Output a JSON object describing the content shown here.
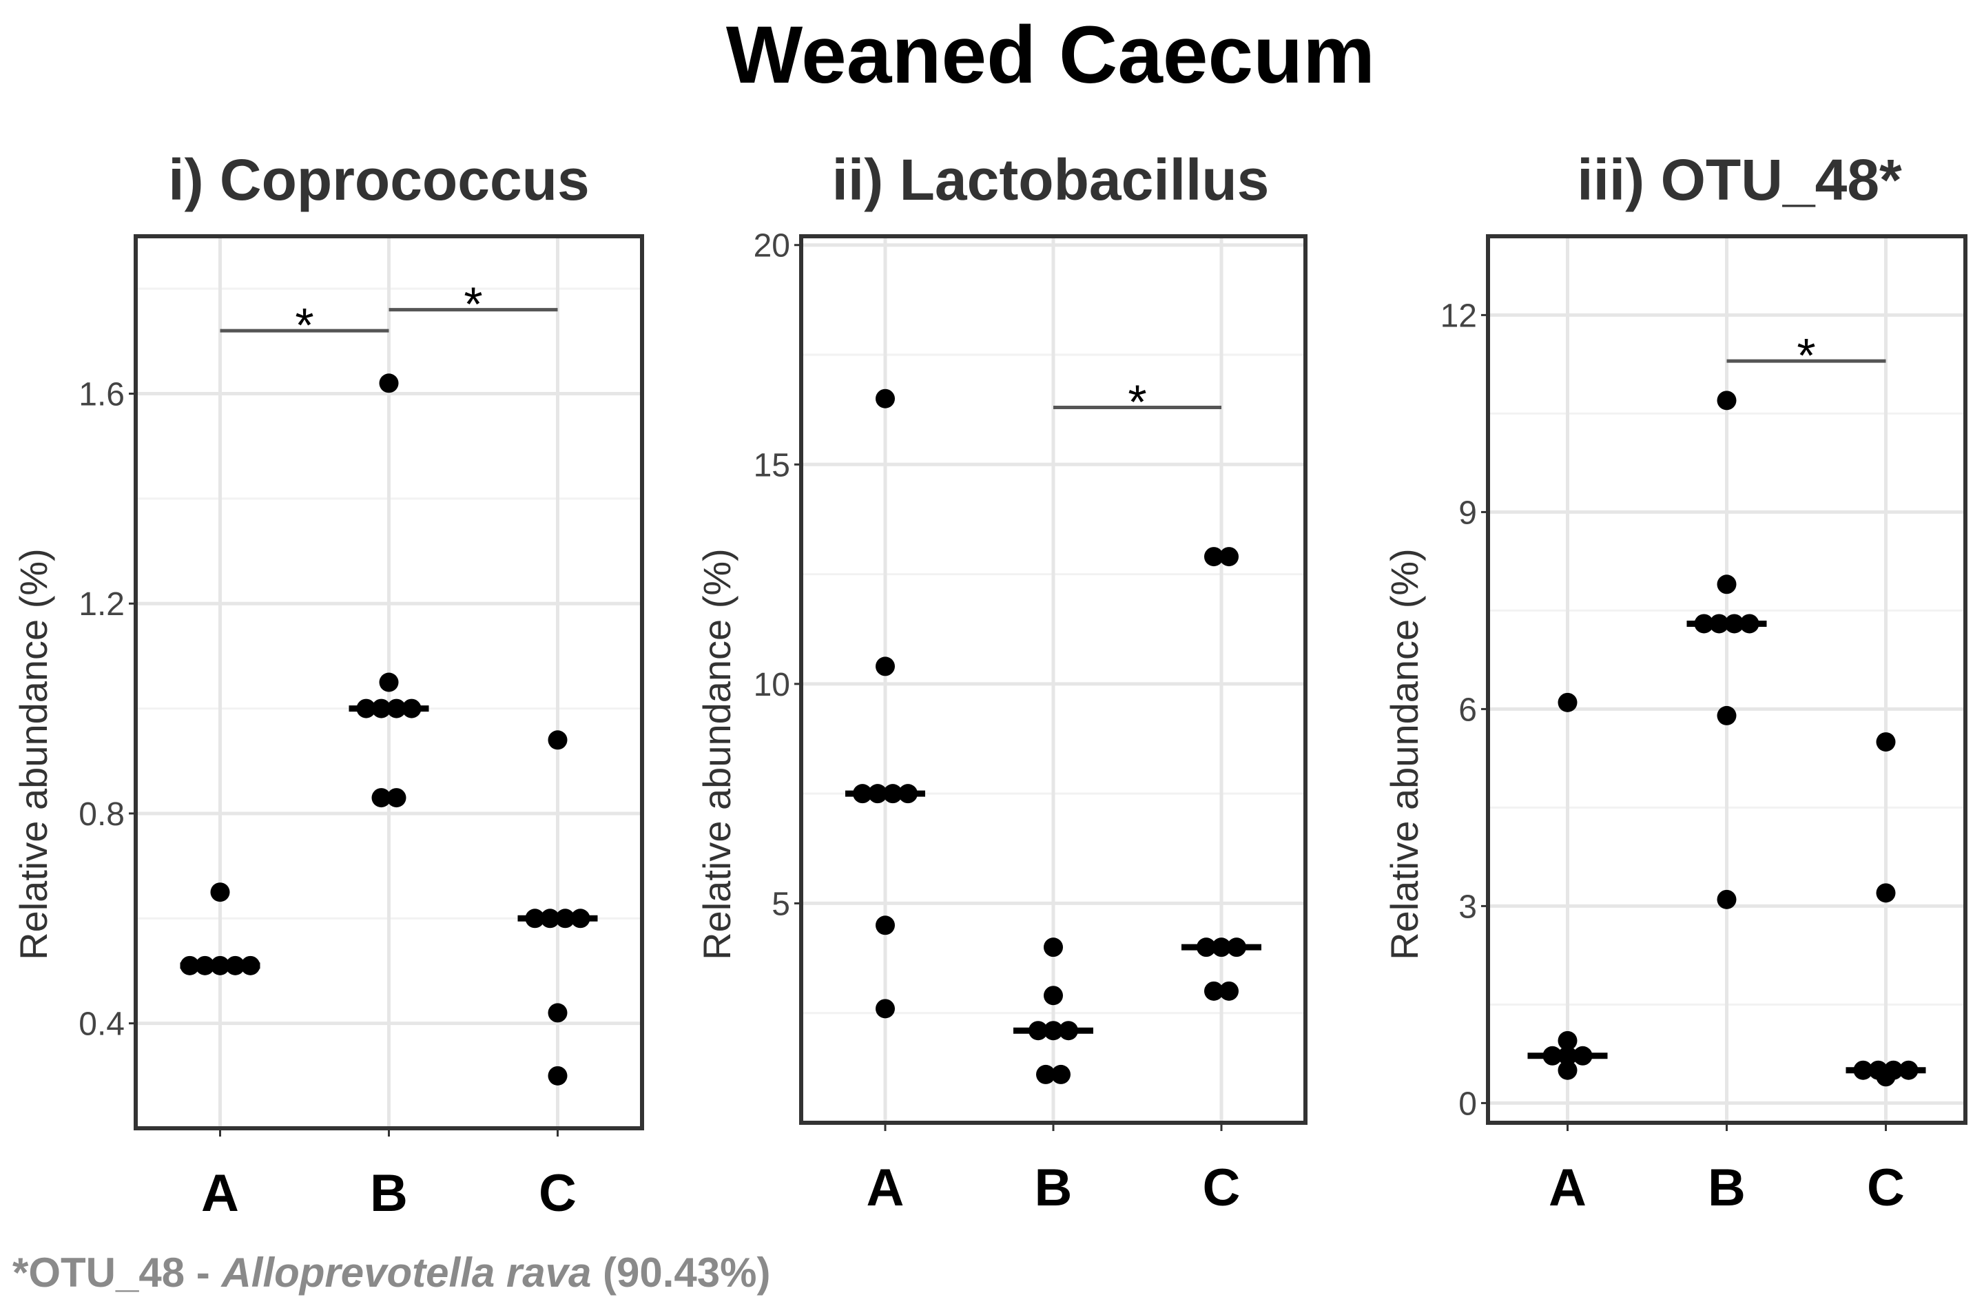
{
  "title": "Weaned Caecum",
  "footnote": {
    "prefix": "*OTU_48 - ",
    "species": "Alloprevotella rava",
    "suffix": " (90.43%)"
  },
  "chart_data": [
    {
      "type": "scatter",
      "title": "i) Coprococcus",
      "xlabel": "",
      "ylabel": "Relative abundance (%)",
      "categories": [
        "A",
        "B",
        "C"
      ],
      "ylim": [
        0.2,
        1.9
      ],
      "yticks": [
        0.4,
        0.8,
        1.2,
        1.6
      ],
      "ytick_labels": [
        "0.4",
        "0.8",
        "1.2",
        "1.6"
      ],
      "grid": true,
      "points": [
        {
          "category": "A",
          "values": [
            0.65,
            0.51,
            0.51,
            0.51,
            0.51,
            0.51
          ]
        },
        {
          "category": "B",
          "values": [
            1.62,
            1.05,
            1.0,
            1.0,
            1.0,
            1.0,
            0.83,
            0.83
          ]
        },
        {
          "category": "C",
          "values": [
            0.94,
            0.6,
            0.6,
            0.6,
            0.6,
            0.42,
            0.3
          ]
        }
      ],
      "centers": [
        0.51,
        1.0,
        0.6
      ],
      "significance": [
        {
          "from": "A",
          "to": "B",
          "y": 1.72,
          "label": "*"
        },
        {
          "from": "B",
          "to": "C",
          "y": 1.76,
          "label": "*"
        }
      ]
    },
    {
      "type": "scatter",
      "title": "ii) Lactobacillus",
      "xlabel": "",
      "ylabel": "Relative abundance (%)",
      "categories": [
        "A",
        "B",
        "C"
      ],
      "ylim": [
        0.0,
        20.2
      ],
      "yticks": [
        5,
        10,
        15,
        20
      ],
      "ytick_labels": [
        "5",
        "10",
        "15",
        "20"
      ],
      "grid": true,
      "points": [
        {
          "category": "A",
          "values": [
            16.5,
            10.4,
            7.5,
            7.5,
            7.5,
            7.5,
            4.5,
            2.6
          ]
        },
        {
          "category": "B",
          "values": [
            4.0,
            2.9,
            2.1,
            2.1,
            2.1,
            1.1,
            1.1
          ]
        },
        {
          "category": "C",
          "values": [
            12.9,
            12.9,
            4.0,
            4.0,
            4.0,
            3.0,
            3.0
          ]
        }
      ],
      "centers": [
        7.5,
        2.1,
        4.0
      ],
      "significance": [
        {
          "from": "B",
          "to": "C",
          "y": 16.3,
          "label": "*"
        }
      ]
    },
    {
      "type": "scatter",
      "title": "iii) OTU_48*",
      "xlabel": "",
      "ylabel": "Relative abundance (%)",
      "categories": [
        "A",
        "B",
        "C"
      ],
      "ylim": [
        -0.3,
        13.2
      ],
      "yticks": [
        0,
        3,
        6,
        9,
        12
      ],
      "ytick_labels": [
        "0",
        "3",
        "6",
        "9",
        "12"
      ],
      "grid": true,
      "points": [
        {
          "category": "A",
          "values": [
            6.1,
            0.95,
            0.72,
            0.72,
            0.72,
            0.5
          ]
        },
        {
          "category": "B",
          "values": [
            10.7,
            7.9,
            7.3,
            7.3,
            7.3,
            7.3,
            5.9,
            3.1
          ]
        },
        {
          "category": "C",
          "values": [
            5.5,
            3.2,
            0.5,
            0.5,
            0.5,
            0.5,
            0.4
          ]
        }
      ],
      "centers": [
        0.72,
        7.3,
        0.5
      ],
      "significance": [
        {
          "from": "B",
          "to": "C",
          "y": 11.3,
          "label": "*"
        }
      ]
    }
  ]
}
